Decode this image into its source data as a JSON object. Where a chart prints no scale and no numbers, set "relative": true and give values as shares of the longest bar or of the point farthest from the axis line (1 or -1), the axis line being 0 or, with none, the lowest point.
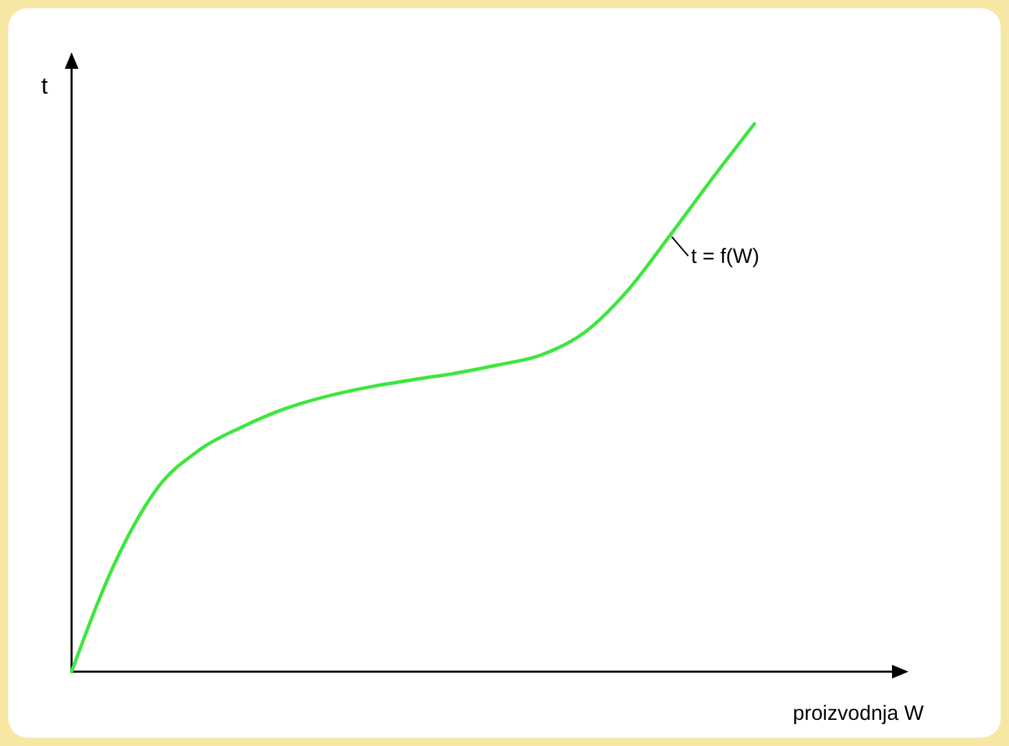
{
  "chart_data": {
    "type": "line",
    "relative": true,
    "xlabel": "proizvodnja  W",
    "ylabel": "t",
    "annotations": [
      "t = f(W)"
    ],
    "categories": [
      null,
      null,
      null,
      null,
      null,
      null,
      null,
      null,
      null,
      null,
      null,
      null,
      null,
      null,
      null,
      null,
      null
    ],
    "series": [
      {
        "color": "#3ee63e",
        "values": [
          0,
          0.196,
          0.334,
          0.405,
          0.447,
          0.48,
          0.503,
          0.52,
          0.533,
          0.545,
          0.56,
          0.578,
          0.618,
          0.693,
          0.794,
          0.899,
          1.0
        ]
      }
    ],
    "grid": false,
    "marker": "none",
    "line_style": "solid"
  }
}
